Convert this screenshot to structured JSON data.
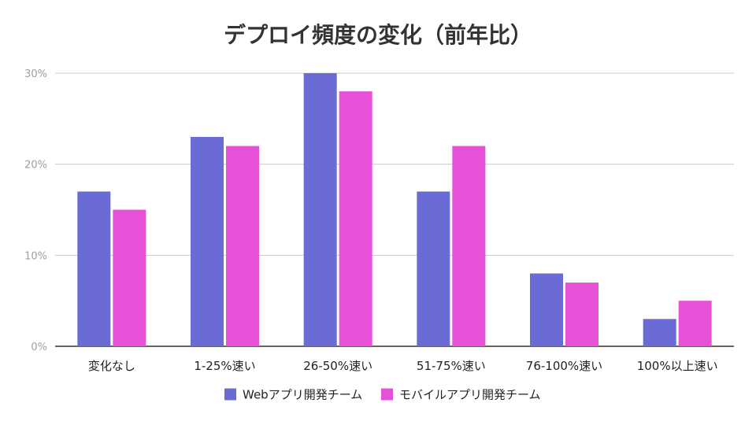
{
  "chart_data": {
    "type": "bar",
    "title": "デプロイ頻度の変化（前年比）",
    "xlabel": "",
    "ylabel": "",
    "categories": [
      "変化なし",
      "1-25%速い",
      "26-50%速い",
      "51-75%速い",
      "76-100%速い",
      "100%以上速い"
    ],
    "series": [
      {
        "name": "Webアプリ開発チーム",
        "color": "#6b6bd6",
        "values": [
          17,
          23,
          30,
          17,
          8,
          3
        ]
      },
      {
        "name": "モバイルアプリ開発チーム",
        "color": "#e651d8",
        "values": [
          15,
          22,
          28,
          22,
          7,
          5
        ]
      }
    ],
    "ylim": [
      0,
      30
    ],
    "yticks": [
      "0%",
      "10%",
      "20%",
      "30%"
    ],
    "ytick_values": [
      0,
      10,
      20,
      30
    ],
    "grid": true,
    "legend_position": "bottom"
  }
}
